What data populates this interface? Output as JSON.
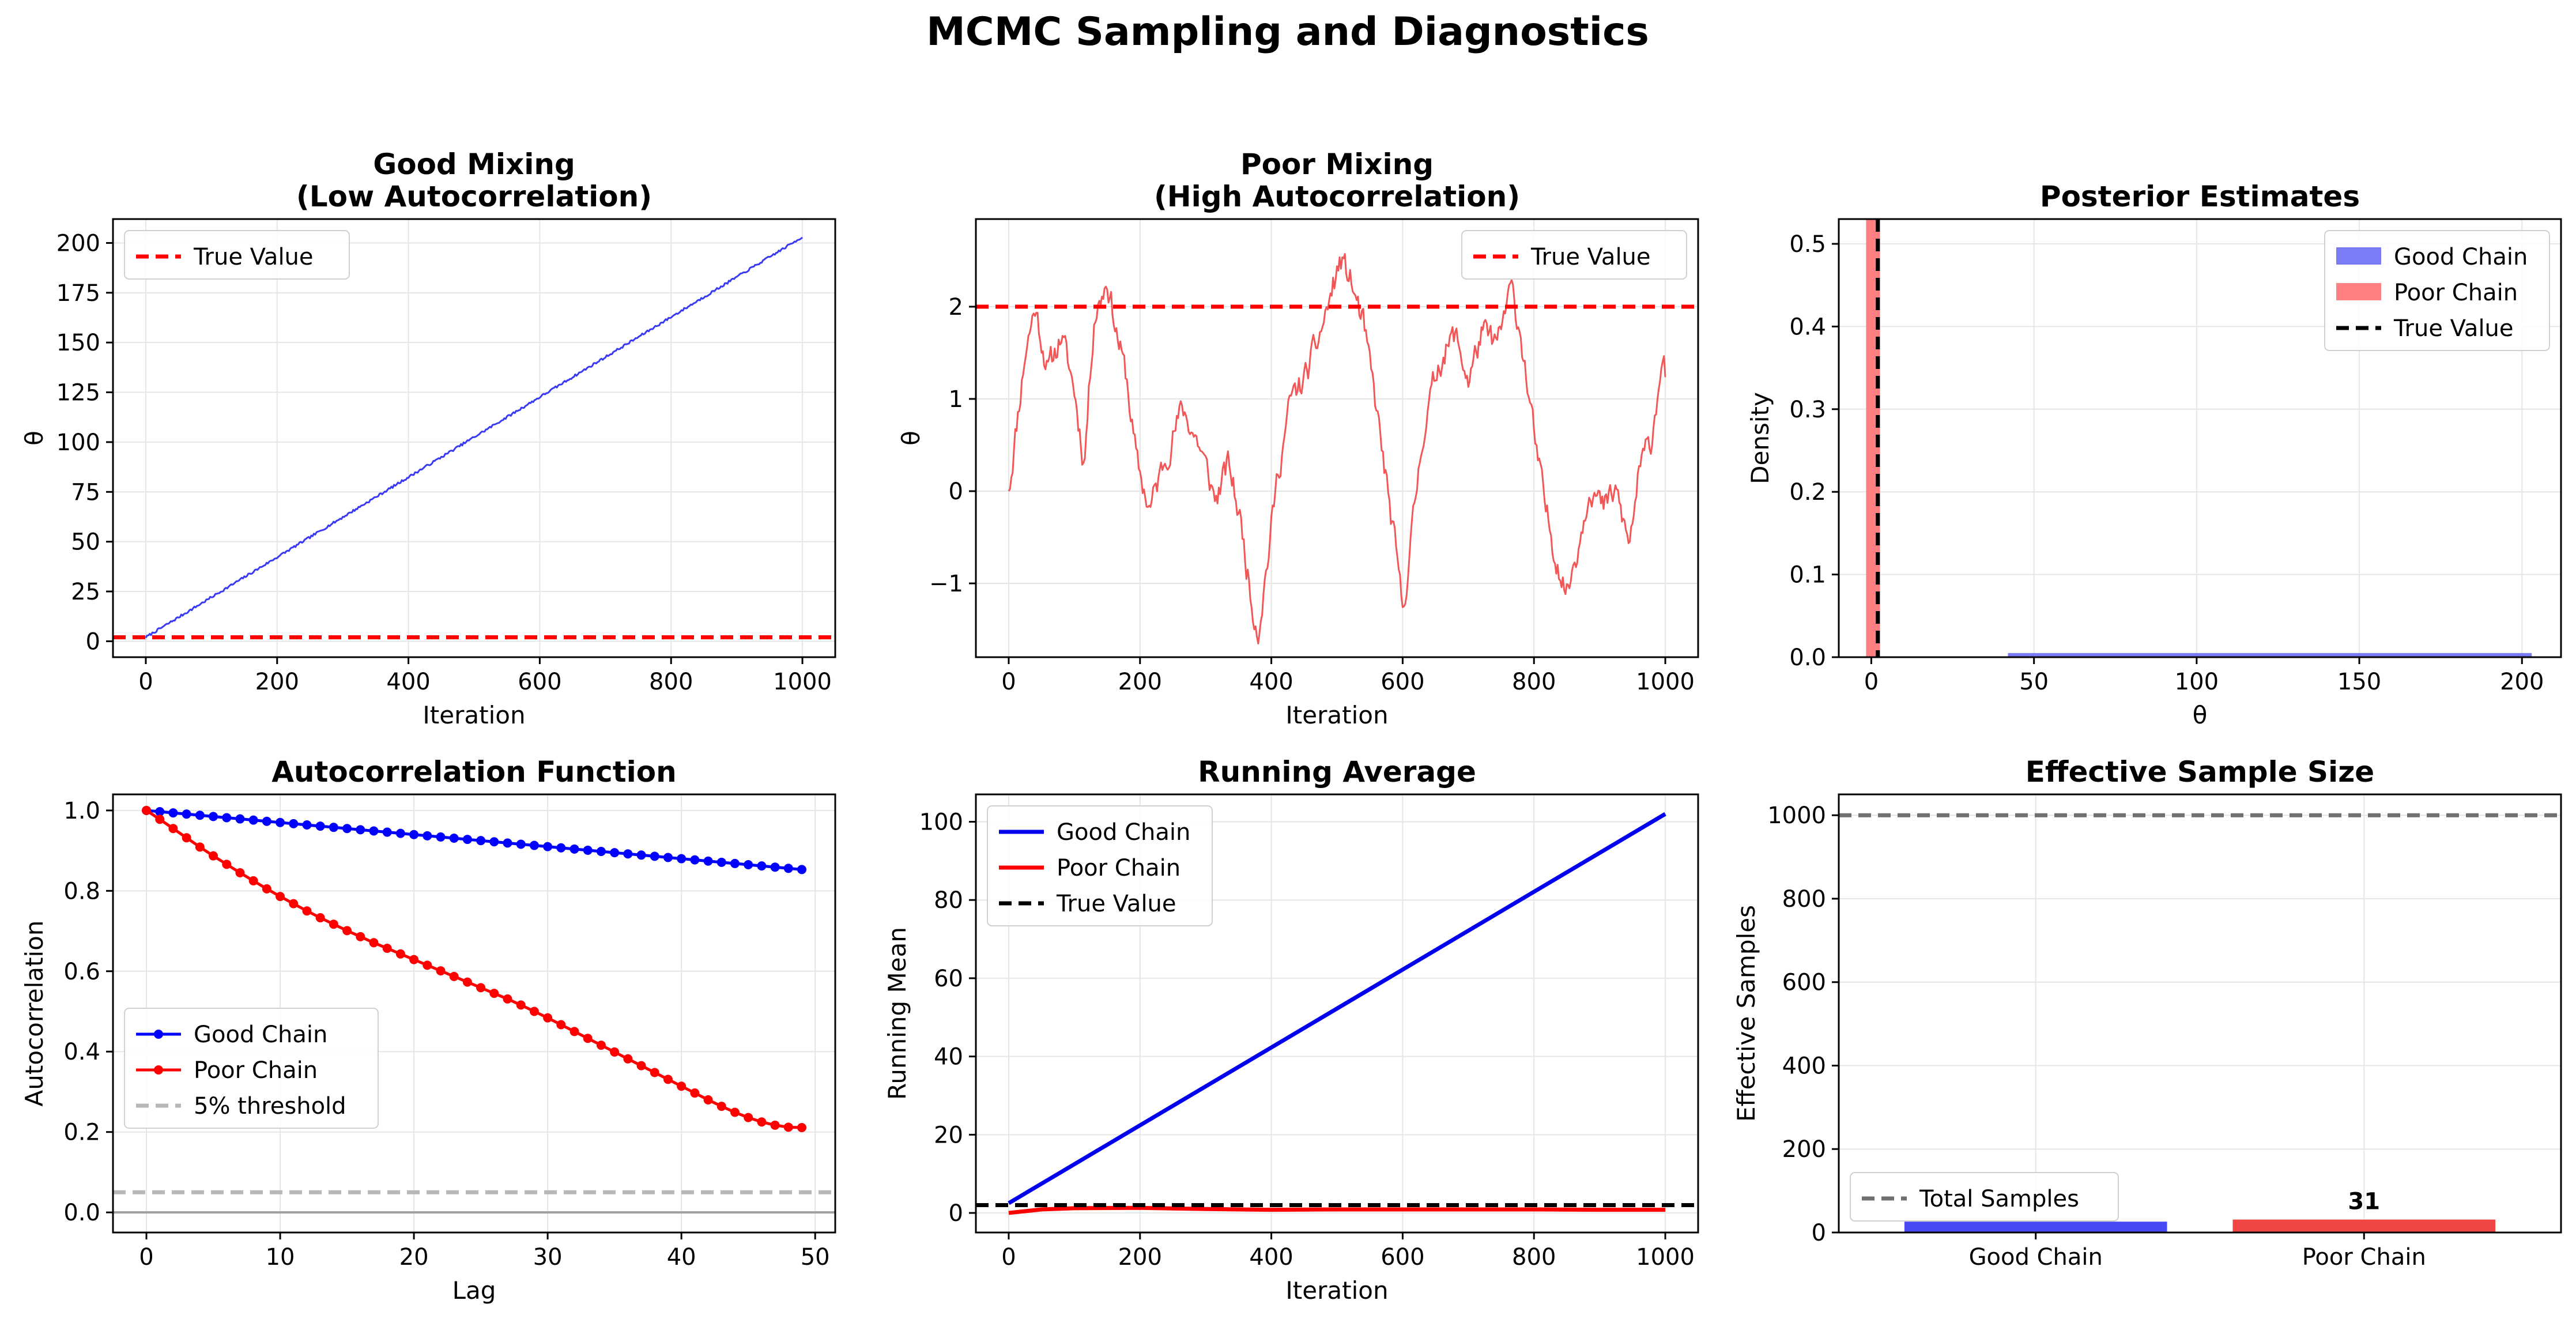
{
  "figure": {
    "title": "MCMC Sampling and Diagnostics"
  },
  "chart_data": [
    {
      "id": "good-mixing",
      "type": "line",
      "title": [
        "Good Mixing",
        "(Low Autocorrelation)"
      ],
      "xlabel": "Iteration",
      "ylabel": "θ",
      "xlim": [
        -50,
        1050
      ],
      "ylim": [
        -8,
        212
      ],
      "xticks": [
        0,
        200,
        400,
        600,
        800,
        1000
      ],
      "yticks": [
        0,
        25,
        50,
        75,
        100,
        125,
        150,
        175,
        200
      ],
      "grid": true,
      "legend_position": "upper-left",
      "series": [
        {
          "kind": "trace",
          "color": "#3a3af5",
          "x_range": [
            0,
            1000
          ],
          "y_start": 2,
          "y_end": 203,
          "noise": 0.6,
          "seed": 7
        }
      ],
      "hlines": [
        {
          "name": "True Value",
          "y": 2,
          "color": "#ff0000",
          "style": "dashed"
        }
      ]
    },
    {
      "id": "poor-mixing",
      "type": "line",
      "title": [
        "Poor Mixing",
        "(High Autocorrelation)"
      ],
      "xlabel": "Iteration",
      "ylabel": "θ",
      "xlim": [
        -50,
        1050
      ],
      "ylim": [
        -1.8,
        2.95
      ],
      "xticks": [
        0,
        200,
        400,
        600,
        800,
        1000
      ],
      "yticks": [
        -1,
        0,
        1,
        2
      ],
      "ytick_labels": [
        "−1",
        "0",
        "1",
        "2"
      ],
      "grid": true,
      "legend_position": "upper-right",
      "series": [
        {
          "kind": "wander",
          "color": "#f04545",
          "opacity": 0.9,
          "anchors": [
            [
              0,
              0
            ],
            [
              25,
              1.5
            ],
            [
              40,
              2.0
            ],
            [
              60,
              1.3
            ],
            [
              80,
              1.7
            ],
            [
              100,
              1.1
            ],
            [
              115,
              0.3
            ],
            [
              130,
              1.9
            ],
            [
              150,
              2.3
            ],
            [
              165,
              1.7
            ],
            [
              180,
              1.2
            ],
            [
              195,
              0.3
            ],
            [
              215,
              -0.2
            ],
            [
              240,
              0.4
            ],
            [
              265,
              0.9
            ],
            [
              290,
              0.5
            ],
            [
              315,
              -0.1
            ],
            [
              335,
              0.3
            ],
            [
              355,
              -0.4
            ],
            [
              370,
              -1.2
            ],
            [
              380,
              -1.5
            ],
            [
              395,
              -0.7
            ],
            [
              410,
              0.2
            ],
            [
              430,
              1.0
            ],
            [
              450,
              1.2
            ],
            [
              470,
              1.6
            ],
            [
              490,
              2.1
            ],
            [
              505,
              2.5
            ],
            [
              520,
              2.3
            ],
            [
              540,
              1.8
            ],
            [
              560,
              0.9
            ],
            [
              575,
              0.1
            ],
            [
              590,
              -0.7
            ],
            [
              600,
              -1.3
            ],
            [
              615,
              -0.4
            ],
            [
              630,
              0.6
            ],
            [
              655,
              1.4
            ],
            [
              680,
              1.7
            ],
            [
              700,
              1.2
            ],
            [
              720,
              1.7
            ],
            [
              745,
              1.6
            ],
            [
              765,
              2.2
            ],
            [
              780,
              1.7
            ],
            [
              800,
              0.6
            ],
            [
              815,
              -0.1
            ],
            [
              830,
              -0.6
            ],
            [
              850,
              -1.1
            ],
            [
              870,
              -0.5
            ],
            [
              885,
              0.1
            ],
            [
              905,
              -0.2
            ],
            [
              925,
              0.0
            ],
            [
              945,
              -0.6
            ],
            [
              960,
              0.2
            ],
            [
              980,
              0.6
            ],
            [
              995,
              1.5
            ],
            [
              1000,
              1.3
            ]
          ],
          "noise": 0.13,
          "seed": 11
        }
      ],
      "hlines": [
        {
          "name": "True Value",
          "y": 2,
          "color": "#ff0000",
          "style": "dashed"
        }
      ]
    },
    {
      "id": "posterior",
      "type": "bar",
      "title": [
        "Posterior Estimates"
      ],
      "xlabel": "θ",
      "ylabel": "Density",
      "xlim": [
        -10,
        212
      ],
      "ylim": [
        0,
        0.53
      ],
      "xticks": [
        0,
        50,
        100,
        150,
        200
      ],
      "yticks": [
        0.0,
        0.1,
        0.2,
        0.3,
        0.4,
        0.5
      ],
      "ytick_labels": [
        "0.0",
        "0.1",
        "0.2",
        "0.3",
        "0.4",
        "0.5"
      ],
      "grid": true,
      "legend_position": "upper-right",
      "series": [
        {
          "name": "Good Chain",
          "color": "#7b7bf5",
          "bins": [
            [
              42,
              203,
              0.005
            ]
          ]
        },
        {
          "name": "Poor Chain",
          "color": "#ff8080",
          "bins": [
            [
              -1.6,
              2.7,
              0.53
            ]
          ]
        }
      ],
      "vlines": [
        {
          "name": "True Value",
          "x": 2,
          "color": "#000000",
          "style": "dashed"
        }
      ]
    },
    {
      "id": "acf",
      "type": "line",
      "title": [
        "Autocorrelation Function"
      ],
      "xlabel": "Lag",
      "ylabel": "Autocorrelation",
      "xlim": [
        -2.5,
        51.5
      ],
      "ylim": [
        -0.05,
        1.04
      ],
      "xticks": [
        0,
        10,
        20,
        30,
        40,
        50
      ],
      "yticks": [
        0.0,
        0.2,
        0.4,
        0.6,
        0.8,
        1.0
      ],
      "ytick_labels": [
        "0.0",
        "0.2",
        "0.4",
        "0.6",
        "0.8",
        "1.0"
      ],
      "grid": true,
      "legend_position": "center-left",
      "series": [
        {
          "name": "Good Chain",
          "color": "#0000ff",
          "markers": true,
          "x": [
            0,
            1,
            2,
            3,
            4,
            5,
            6,
            7,
            8,
            9,
            10,
            11,
            12,
            13,
            14,
            15,
            16,
            17,
            18,
            19,
            20,
            21,
            22,
            23,
            24,
            25,
            26,
            27,
            28,
            29,
            30,
            31,
            32,
            33,
            34,
            35,
            36,
            37,
            38,
            39,
            40,
            41,
            42,
            43,
            44,
            45,
            46,
            47,
            48,
            49
          ],
          "y": [
            1.0,
            0.997,
            0.994,
            0.991,
            0.988,
            0.985,
            0.982,
            0.979,
            0.976,
            0.973,
            0.97,
            0.967,
            0.964,
            0.961,
            0.958,
            0.955,
            0.952,
            0.949,
            0.946,
            0.943,
            0.94,
            0.937,
            0.934,
            0.931,
            0.928,
            0.925,
            0.922,
            0.919,
            0.916,
            0.913,
            0.91,
            0.907,
            0.904,
            0.901,
            0.898,
            0.895,
            0.892,
            0.889,
            0.886,
            0.883,
            0.88,
            0.877,
            0.874,
            0.871,
            0.868,
            0.865,
            0.862,
            0.859,
            0.856,
            0.853
          ]
        },
        {
          "name": "Poor Chain",
          "color": "#ff0000",
          "markers": true,
          "x": [
            0,
            1,
            2,
            3,
            4,
            5,
            6,
            7,
            8,
            9,
            10,
            11,
            12,
            13,
            14,
            15,
            16,
            17,
            18,
            19,
            20,
            21,
            22,
            23,
            24,
            25,
            26,
            27,
            28,
            29,
            30,
            31,
            32,
            33,
            34,
            35,
            36,
            37,
            38,
            39,
            40,
            41,
            42,
            43,
            44,
            45,
            46,
            47,
            48,
            49
          ],
          "y": [
            1.0,
            0.978,
            0.955,
            0.932,
            0.909,
            0.887,
            0.866,
            0.845,
            0.825,
            0.805,
            0.786,
            0.768,
            0.75,
            0.733,
            0.717,
            0.701,
            0.686,
            0.671,
            0.657,
            0.643,
            0.629,
            0.615,
            0.601,
            0.587,
            0.573,
            0.559,
            0.545,
            0.531,
            0.516,
            0.5,
            0.484,
            0.467,
            0.45,
            0.433,
            0.416,
            0.399,
            0.382,
            0.365,
            0.348,
            0.331,
            0.314,
            0.297,
            0.28,
            0.264,
            0.249,
            0.236,
            0.225,
            0.217,
            0.212,
            0.211
          ]
        }
      ],
      "hlines": [
        {
          "name": "5% threshold",
          "y": 0.05,
          "color": "#b8b8b8",
          "style": "dashed"
        },
        {
          "y": 0.0,
          "color": "#a0a0a0",
          "style": "solid"
        }
      ]
    },
    {
      "id": "running-average",
      "type": "line",
      "title": [
        "Running Average"
      ],
      "xlabel": "Iteration",
      "ylabel": "Running Mean",
      "xlim": [
        -50,
        1050
      ],
      "ylim": [
        -5,
        107
      ],
      "xticks": [
        0,
        200,
        400,
        600,
        800,
        1000
      ],
      "yticks": [
        0,
        20,
        40,
        60,
        80,
        100
      ],
      "grid": true,
      "legend_position": "upper-left",
      "series": [
        {
          "name": "Good Chain",
          "color": "#0000ee",
          "x": [
            0,
            1000
          ],
          "y": [
            2.5,
            102
          ]
        },
        {
          "name": "Poor Chain",
          "color": "#ff0000",
          "x": [
            0,
            50,
            100,
            200,
            300,
            400,
            500,
            600,
            700,
            800,
            900,
            1000
          ],
          "y": [
            0,
            0.9,
            1.2,
            1.3,
            1.0,
            0.8,
            0.9,
            0.9,
            0.9,
            0.9,
            0.8,
            0.8
          ]
        }
      ],
      "hlines": [
        {
          "name": "True Value",
          "y": 2,
          "color": "#000000",
          "style": "dashed"
        }
      ]
    },
    {
      "id": "ess",
      "type": "bar",
      "title": [
        "Effective Sample Size"
      ],
      "xlabel": "",
      "ylabel": "Effective Samples",
      "categories": [
        "Good Chain",
        "Poor Chain"
      ],
      "values": [
        26,
        31
      ],
      "bar_labels": [
        "",
        "31"
      ],
      "colors": [
        "#4a4af5",
        "#f04545"
      ],
      "ylim": [
        0,
        1050
      ],
      "yticks": [
        0,
        200,
        400,
        600,
        800,
        1000
      ],
      "grid": true,
      "legend_position": "lower-left",
      "hlines": [
        {
          "name": "Total Samples",
          "y": 1000,
          "color": "#707070",
          "style": "dashed"
        }
      ]
    }
  ]
}
